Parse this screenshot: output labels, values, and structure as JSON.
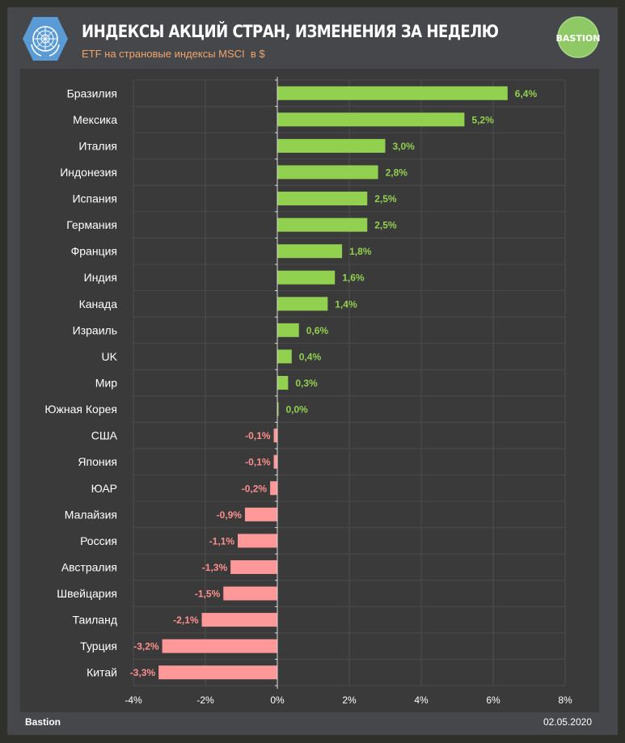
{
  "header": {
    "title": "ИНДЕКСЫ АКЦИЙ СТРАН, ИЗМЕНЕНИЯ ЗА НЕДЕЛЮ",
    "subtitle": "ETF на страновые индексы MSCI  в $",
    "brand": "BASTION"
  },
  "colors": {
    "positive": "#92d050",
    "negative": "#ff9999",
    "positive_label": "#92d050",
    "negative_label": "#ff8f8f",
    "un_logo": "#5b9bd5",
    "brand_logo": "#8fc965"
  },
  "chart_data": {
    "type": "bar",
    "orientation": "horizontal",
    "title": "ИНДЕКСЫ АКЦИЙ СТРАН, ИЗМЕНЕНИЯ ЗА НЕДЕЛЮ",
    "subtitle": "ETF на страновые индексы MSCI  в $",
    "categories": [
      "Бразилия",
      "Мексика",
      "Италия",
      "Индонезия",
      "Испания",
      "Германия",
      "Франция",
      "Индия",
      "Канада",
      "Израиль",
      "UK",
      "Мир",
      "Южная Корея",
      "США",
      "Япония",
      "ЮАР",
      "Малайзия",
      "Россия",
      "Австралия",
      "Швейцария",
      "Таиланд",
      "Турция",
      "Китай"
    ],
    "values": [
      6.4,
      5.2,
      3.0,
      2.8,
      2.5,
      2.5,
      1.8,
      1.6,
      1.4,
      0.6,
      0.4,
      0.3,
      0.0,
      -0.1,
      -0.1,
      -0.2,
      -0.9,
      -1.1,
      -1.3,
      -1.5,
      -2.1,
      -3.2,
      -3.3
    ],
    "value_labels": [
      "6,4%",
      "5,2%",
      "3,0%",
      "2,8%",
      "2,5%",
      "2,5%",
      "1,8%",
      "1,6%",
      "1,4%",
      "0,6%",
      "0,4%",
      "0,3%",
      "0,0%",
      "-0,1%",
      "-0,1%",
      "-0,2%",
      "-0,9%",
      "-1,1%",
      "-1,3%",
      "-1,5%",
      "-2,1%",
      "-3,2%",
      "-3,3%"
    ],
    "xlim": [
      -4,
      8
    ],
    "xticks": [
      -4,
      -2,
      0,
      2,
      4,
      6,
      8
    ],
    "xtick_labels": [
      "-4%",
      "-2%",
      "0%",
      "2%",
      "4%",
      "6%",
      "8%"
    ],
    "grid": true,
    "xlabel": "",
    "ylabel": ""
  },
  "footer": {
    "source": "Bastion",
    "date": "02.05.2020"
  }
}
